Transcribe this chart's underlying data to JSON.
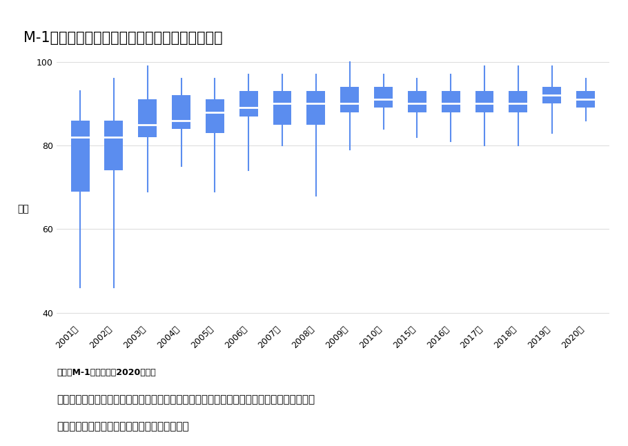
{
  "title": "M-1グランプリ得点分布（２００１～２０２０）",
  "ylabel": "得点",
  "source": "出典：M-1グランプリ2020年大会",
  "footnote1": "今年度は過去の大会と比較し、最高点と最低点の差が最も小さく、また笥が線の中央辿りに",
  "footnote2": "位置し、外れ値などがないことがわかります。",
  "ylim": [
    38,
    102
  ],
  "yticks": [
    40,
    60,
    80,
    100
  ],
  "categories": [
    "2001年",
    "2002年",
    "2003年",
    "2004年",
    "2005年",
    "2006年",
    "2007年",
    "2008年",
    "2009年",
    "2010年",
    "2015年",
    "2016年",
    "2017年",
    "2018年",
    "2019年",
    "2020年"
  ],
  "box_data": [
    {
      "whislo": 46,
      "q1": 69,
      "med": 82,
      "q3": 86,
      "whishi": 93
    },
    {
      "whislo": 46,
      "q1": 74,
      "med": 82,
      "q3": 86,
      "whishi": 96
    },
    {
      "whislo": 69,
      "q1": 82,
      "med": 85,
      "q3": 91,
      "whishi": 99
    },
    {
      "whislo": 75,
      "q1": 84,
      "med": 86,
      "q3": 92,
      "whishi": 96
    },
    {
      "whislo": 69,
      "q1": 83,
      "med": 88,
      "q3": 91,
      "whishi": 96
    },
    {
      "whislo": 74,
      "q1": 87,
      "med": 89,
      "q3": 93,
      "whishi": 97
    },
    {
      "whislo": 80,
      "q1": 85,
      "med": 90,
      "q3": 93,
      "whishi": 97
    },
    {
      "whislo": 68,
      "q1": 85,
      "med": 90,
      "q3": 93,
      "whishi": 97
    },
    {
      "whislo": 79,
      "q1": 88,
      "med": 90,
      "q3": 94,
      "whishi": 100
    },
    {
      "whislo": 84,
      "q1": 89,
      "med": 91,
      "q3": 94,
      "whishi": 97
    },
    {
      "whislo": 82,
      "q1": 88,
      "med": 90,
      "q3": 93,
      "whishi": 96
    },
    {
      "whislo": 81,
      "q1": 88,
      "med": 90,
      "q3": 93,
      "whishi": 97
    },
    {
      "whislo": 80,
      "q1": 88,
      "med": 90,
      "q3": 93,
      "whishi": 99
    },
    {
      "whislo": 80,
      "q1": 88,
      "med": 90,
      "q3": 93,
      "whishi": 99
    },
    {
      "whislo": 83,
      "q1": 90,
      "med": 92,
      "q3": 94,
      "whishi": 99
    },
    {
      "whislo": 86,
      "q1": 89,
      "med": 91,
      "q3": 93,
      "whishi": 96
    }
  ],
  "box_color": "#5B8DEF",
  "whisker_color": "#5B8DEF",
  "background_color": "#ffffff",
  "grid_color": "#dddddd",
  "title_fontsize": 15,
  "label_fontsize": 10,
  "tick_fontsize": 9,
  "source_fontsize": 9,
  "footnote_fontsize": 11
}
